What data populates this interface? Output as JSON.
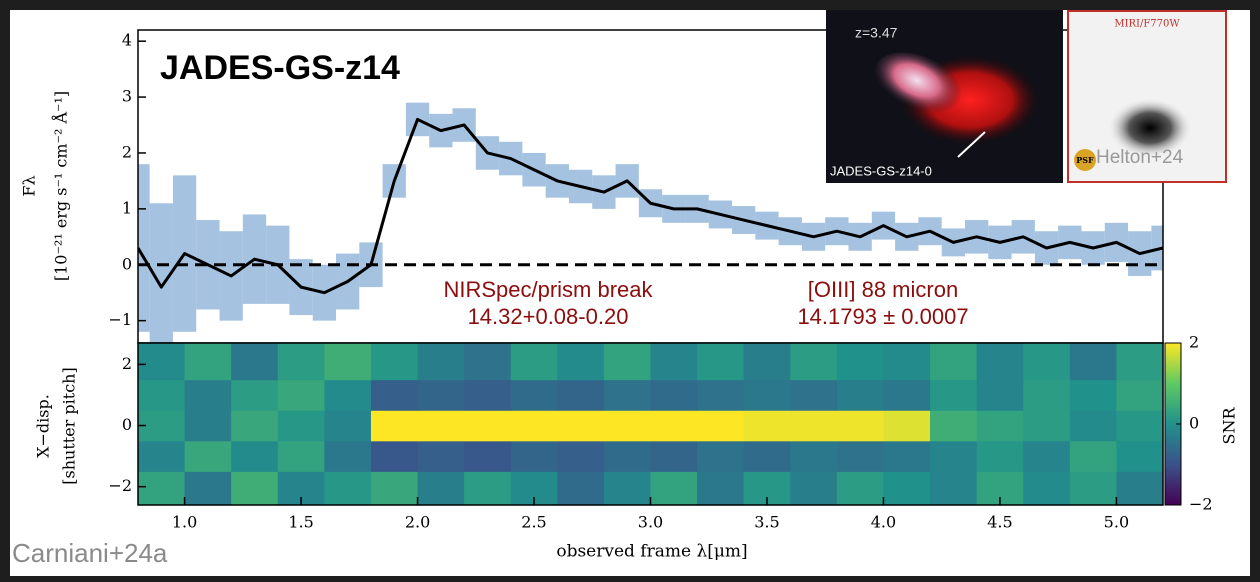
{
  "chart_data": [
    {
      "type": "line",
      "title": "JADES-GS-z14",
      "ylabel": [
        "Fλ",
        "[10⁻²¹ erg s⁻¹ cm⁻² Å⁻¹]"
      ],
      "x": [
        0.8,
        0.9,
        1.0,
        1.1,
        1.2,
        1.3,
        1.4,
        1.5,
        1.6,
        1.7,
        1.8,
        1.9,
        2.0,
        2.1,
        2.2,
        2.3,
        2.4,
        2.5,
        2.6,
        2.7,
        2.8,
        2.9,
        3.0,
        3.1,
        3.2,
        3.3,
        3.4,
        3.5,
        3.6,
        3.7,
        3.8,
        3.9,
        4.0,
        4.1,
        4.2,
        4.3,
        4.4,
        4.5,
        4.6,
        4.7,
        4.8,
        4.9,
        5.0,
        5.1,
        5.2
      ],
      "series": [
        {
          "color": "#000000",
          "error_color": "#8fb4d8",
          "values": [
            0.3,
            -0.4,
            0.2,
            0.0,
            -0.2,
            0.1,
            0.0,
            -0.4,
            -0.5,
            -0.3,
            0.0,
            1.5,
            2.6,
            2.4,
            2.5,
            2.0,
            1.9,
            1.7,
            1.5,
            1.4,
            1.3,
            1.5,
            1.1,
            1.0,
            1.0,
            0.9,
            0.8,
            0.7,
            0.6,
            0.5,
            0.6,
            0.5,
            0.7,
            0.5,
            0.6,
            0.4,
            0.5,
            0.4,
            0.5,
            0.3,
            0.4,
            0.3,
            0.4,
            0.2,
            0.3
          ],
          "errors": [
            1.5,
            1.5,
            1.4,
            0.8,
            0.8,
            0.8,
            0.7,
            0.5,
            0.5,
            0.5,
            0.4,
            0.3,
            0.3,
            0.3,
            0.3,
            0.3,
            0.3,
            0.3,
            0.3,
            0.3,
            0.3,
            0.3,
            0.25,
            0.25,
            0.25,
            0.25,
            0.25,
            0.25,
            0.25,
            0.25,
            0.25,
            0.25,
            0.25,
            0.25,
            0.25,
            0.25,
            0.3,
            0.3,
            0.3,
            0.3,
            0.3,
            0.3,
            0.35,
            0.4,
            0.4
          ]
        }
      ],
      "xlim": [
        0.8,
        5.2
      ],
      "ylim": [
        -1.4,
        4.2
      ],
      "yticks": [
        {
          "value": -1,
          "label": "−1"
        },
        0,
        1,
        2,
        3,
        4
      ],
      "hline": 0,
      "annotations": [
        [
          "NIRSpec/prism break",
          "14.32+0.08-0.20"
        ],
        [
          "[OIII] 88 micron",
          "14.1793 ± 0.0007"
        ]
      ]
    },
    {
      "type": "heatmap",
      "ylabel": [
        "X−disp.",
        "[shutter pitch]"
      ],
      "xlabel": "observed frame λ[μm]",
      "x": [
        0.9,
        1.1,
        1.3,
        1.5,
        1.7,
        1.9,
        2.1,
        2.3,
        2.5,
        2.7,
        2.9,
        3.1,
        3.3,
        3.5,
        3.7,
        3.9,
        4.1,
        4.3,
        4.5,
        4.7,
        4.9,
        5.1
      ],
      "y": [
        -2,
        -1,
        0,
        1,
        2
      ],
      "values": [
        [
          0.3,
          -0.4,
          0.5,
          -0.2,
          0.1,
          0.4,
          -0.3,
          0.2,
          -0.1,
          -0.6,
          -0.2,
          0.3,
          -0.4,
          0.1,
          -0.3,
          0.2,
          0.0,
          -0.2,
          0.3,
          -0.1,
          0.2,
          -0.3
        ],
        [
          -0.2,
          0.4,
          -0.1,
          0.3,
          -0.4,
          -0.9,
          -0.8,
          -0.9,
          -0.7,
          -0.8,
          -0.6,
          -0.7,
          -0.5,
          -0.6,
          -0.4,
          -0.5,
          -0.4,
          -0.2,
          0.1,
          -0.2,
          0.3,
          0.0
        ],
        [
          0.2,
          -0.3,
          0.4,
          0.1,
          -0.2,
          2.0,
          2.0,
          2.0,
          2.0,
          2.0,
          2.0,
          2.0,
          2.0,
          1.9,
          1.9,
          1.9,
          1.8,
          0.5,
          0.3,
          0.2,
          -0.1,
          0.1
        ],
        [
          0.1,
          -0.3,
          0.2,
          0.4,
          -0.1,
          -0.8,
          -0.7,
          -0.8,
          -0.6,
          -0.7,
          -0.5,
          -0.6,
          -0.5,
          -0.4,
          -0.5,
          -0.3,
          -0.4,
          0.1,
          -0.2,
          0.2,
          0.0,
          0.3
        ],
        [
          -0.1,
          0.3,
          -0.4,
          0.2,
          0.5,
          0.1,
          -0.3,
          -0.5,
          0.2,
          -0.1,
          0.3,
          -0.2,
          0.1,
          -0.3,
          0.2,
          0.0,
          -0.1,
          0.3,
          -0.2,
          0.1,
          -0.4,
          0.2
        ]
      ],
      "xlim": [
        0.8,
        5.2
      ],
      "ylim": [
        -2.6,
        2.7
      ],
      "xticks": [
        {
          "value": 1,
          "label": "1.0"
        },
        1.5,
        {
          "value": 2,
          "label": "2.0"
        },
        2.5,
        {
          "value": 3,
          "label": "3.0"
        },
        3.5,
        {
          "value": 4,
          "label": "4.0"
        },
        4.5,
        {
          "value": 5,
          "label": "5.0"
        }
      ],
      "yticks": [
        {
          "value": -2,
          "label": "−2"
        },
        0,
        2
      ],
      "colorbar": {
        "label": "SNR",
        "lim": [
          -2,
          2
        ],
        "ticks": [
          {
            "value": -2,
            "label": "−2"
          },
          0,
          2
        ]
      }
    }
  ],
  "source": "Carniani+24a",
  "insets": [
    {
      "label": "z=3.47",
      "caption": "JADES-GS-z14-0"
    },
    {
      "title": "MIRI/F770W",
      "psf": "PSF",
      "credit": "Helton+24"
    }
  ]
}
